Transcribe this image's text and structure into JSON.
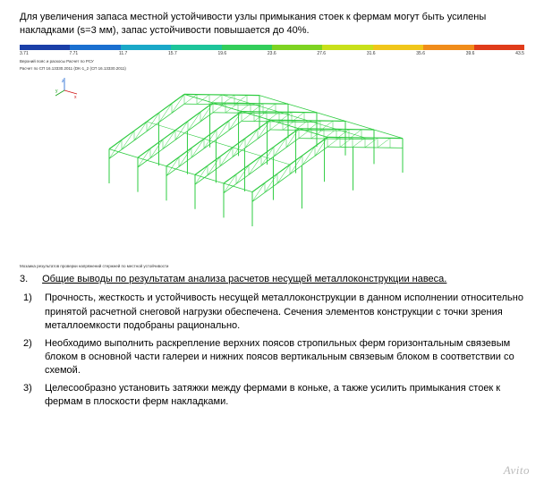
{
  "intro_text": "Для увеличения запаса местной устойчивости узлы примыкания стоек к фермам могут быть усилены накладками (s=3 мм), запас устойчивости повышается до 40%.",
  "colorbar": {
    "segments": [
      "#1a3fa8",
      "#1a6fd0",
      "#1aa8c8",
      "#1dc49a",
      "#32cd5a",
      "#7ed321",
      "#c8e01a",
      "#f0c61a",
      "#f08c1a",
      "#e03c1a"
    ],
    "ticks": [
      "3.71",
      "7.71",
      "11.7",
      "15.7",
      "19.6",
      "23.6",
      "27.6",
      "31.6",
      "35.6",
      "39.6",
      "43.5"
    ],
    "caption_line1": "Верхний пояс и раскосы Расчет по РСУ",
    "caption_line2": "Расчет по СП 16.13330.2011 (DK-1_2 (СП 16.13330.2011)"
  },
  "diagram": {
    "stroke_color": "#2ecc40",
    "stroke_width": 1.0,
    "caption": "Мозаика результатов проверки напряжений стержней по местной устойчивости"
  },
  "section": {
    "number": "3.",
    "title": "Общие выводы по результатам анализа расчетов несущей металлоконструкции навеса."
  },
  "conclusions": [
    "Прочность, жесткость и устойчивость несущей металлоконструкции в данном исполнении относительно принятой расчетной снеговой нагрузки обеспечена. Сечения элементов конструкции с точки зрения металлоемкости подобраны рационально.",
    "Необходимо выполнить раскрепление верхних поясов стропильных ферм горизонтальным связевым блоком в основной части галереи и нижних поясов вертикальным связевым блоком в соответствии со схемой.",
    "Целесообразно установить затяжки между фермами в коньке, а также усилить примыкания стоек к фермам в плоскости ферм накладками."
  ],
  "watermark": "Avito",
  "axis_labels": {
    "x": "x",
    "y": "y",
    "z": "z"
  }
}
